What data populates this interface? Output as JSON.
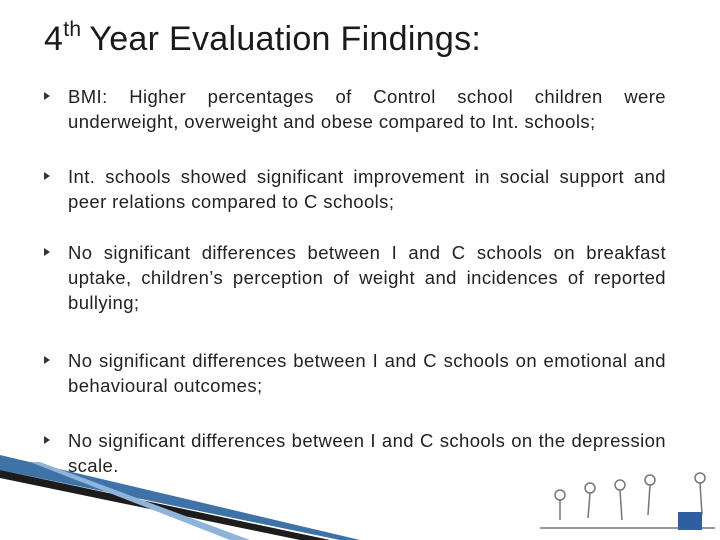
{
  "header": {
    "number": "4",
    "superscript": "th",
    "title": "Year Evaluation Findings:"
  },
  "bullets": [
    "BMI: Higher percentages of Control school children were underweight, overweight and obese compared to Int. schools;",
    "Int. schools showed significant improvement in social support and peer relations compared to C schools;",
    "No significant differences between I and C schools on breakfast uptake, children’s perception of weight and incidences of reported bullying;",
    "No significant differences between I and C schools on emotional and behavioural outcomes;",
    "No significant differences between I and C schools on the depression scale."
  ]
}
